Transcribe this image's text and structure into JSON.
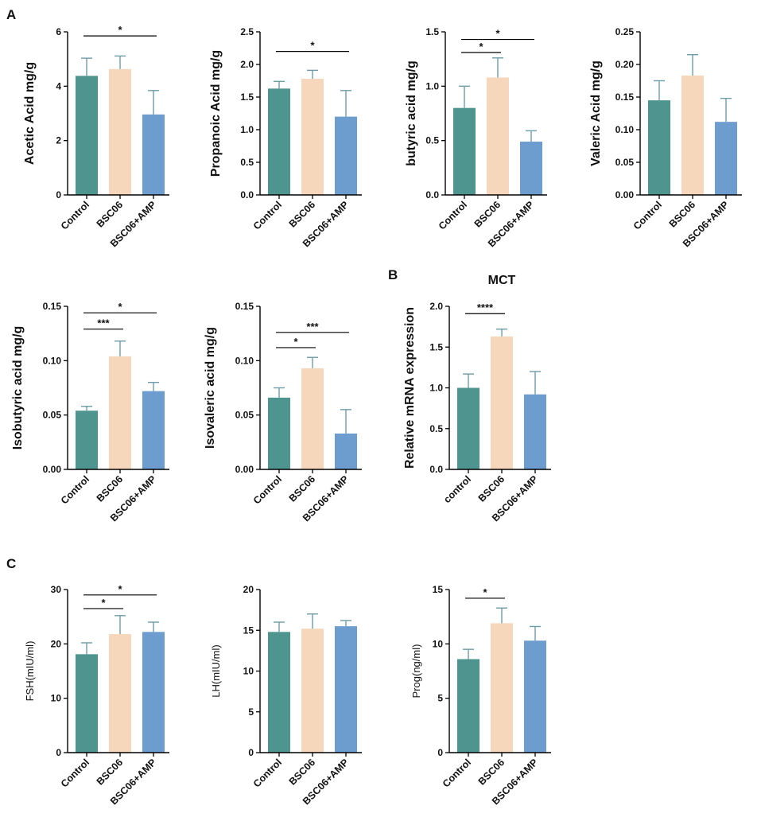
{
  "panel_letters": {
    "a": "A",
    "b": "B",
    "c": "C"
  },
  "colors": {
    "control": "#4e958f",
    "bsc06": "#f6d7bb",
    "amp": "#6d9dcf",
    "axis": "#000000",
    "error": "#6e9ca8"
  },
  "chart_data": [
    {
      "id": "acetic",
      "type": "bar",
      "title": "",
      "ylabel": "Acetic Acid mg/g",
      "categories": [
        "Control",
        "BSC06",
        "BSC06+AMP"
      ],
      "values": [
        4.38,
        4.63,
        2.96
      ],
      "errors": [
        0.65,
        0.48,
        0.88
      ],
      "ylim": [
        0,
        6
      ],
      "yticks": [
        "0",
        "2",
        "4",
        "6"
      ],
      "significance": [
        {
          "from": 0,
          "to": 2,
          "y": 5.85,
          "label": "*"
        }
      ]
    },
    {
      "id": "propanoic",
      "type": "bar",
      "title": "",
      "ylabel": "Propanoic Acid mg/g",
      "categories": [
        "Control",
        "BSC06",
        "BSC06+AMP"
      ],
      "values": [
        1.63,
        1.78,
        1.2
      ],
      "errors": [
        0.11,
        0.13,
        0.4
      ],
      "ylim": [
        0,
        2.5
      ],
      "yticks": [
        "0.0",
        "0.5",
        "1.0",
        "1.5",
        "2.0",
        "2.5"
      ],
      "significance": [
        {
          "from": 0,
          "to": 2,
          "y": 2.2,
          "label": "*"
        }
      ]
    },
    {
      "id": "butyric",
      "type": "bar",
      "title": "",
      "ylabel": "butyric acid mg/g",
      "categories": [
        "Control",
        "BSC06",
        "BSC06+AMP"
      ],
      "values": [
        0.8,
        1.08,
        0.49
      ],
      "errors": [
        0.2,
        0.18,
        0.1
      ],
      "ylim": [
        0,
        1.5
      ],
      "yticks": [
        "0.0",
        "0.5",
        "1.0",
        "1.5"
      ],
      "significance": [
        {
          "from": 0,
          "to": 1,
          "y": 1.31,
          "label": "*"
        },
        {
          "from": 0,
          "to": 2,
          "y": 1.43,
          "label": "*"
        }
      ]
    },
    {
      "id": "valeric",
      "type": "bar",
      "title": "",
      "ylabel": "Valeric Acid mg/g",
      "categories": [
        "Control",
        "BSC06",
        "BSC06+AMP"
      ],
      "values": [
        0.145,
        0.183,
        0.112
      ],
      "errors": [
        0.03,
        0.032,
        0.036
      ],
      "ylim": [
        0,
        0.25
      ],
      "yticks": [
        "0.00",
        "0.05",
        "0.10",
        "0.15",
        "0.20",
        "0.25"
      ],
      "significance": []
    },
    {
      "id": "isobutyric",
      "type": "bar",
      "title": "",
      "ylabel": "Isobutyric acid mg/g",
      "categories": [
        "Control",
        "BSC06",
        "BSC06+AMP"
      ],
      "values": [
        0.054,
        0.104,
        0.072
      ],
      "errors": [
        0.004,
        0.014,
        0.008
      ],
      "ylim": [
        0,
        0.15
      ],
      "yticks": [
        "0.00",
        "0.05",
        "0.10",
        "0.15"
      ],
      "significance": [
        {
          "from": 0,
          "to": 1,
          "y": 0.129,
          "label": "***"
        },
        {
          "from": 0,
          "to": 2,
          "y": 0.144,
          "label": "*"
        }
      ]
    },
    {
      "id": "isovaleric",
      "type": "bar",
      "title": "",
      "ylabel": "Isovaleric acid mg/g",
      "categories": [
        "Control",
        "BSC06",
        "BSC06+AMP"
      ],
      "values": [
        0.066,
        0.093,
        0.033
      ],
      "errors": [
        0.009,
        0.01,
        0.022
      ],
      "ylim": [
        0,
        0.15
      ],
      "yticks": [
        "0.00",
        "0.05",
        "0.10",
        "0.15"
      ],
      "significance": [
        {
          "from": 0,
          "to": 1,
          "y": 0.112,
          "label": "*"
        },
        {
          "from": 0,
          "to": 2,
          "y": 0.126,
          "label": "***"
        }
      ]
    },
    {
      "id": "mct",
      "type": "bar",
      "title": "MCT",
      "ylabel": "Relative mRNA expression",
      "categories": [
        "control",
        "BSC06",
        "BSC06+AMP"
      ],
      "values": [
        1.0,
        1.63,
        0.92
      ],
      "errors": [
        0.17,
        0.09,
        0.28
      ],
      "ylim": [
        0,
        2.0
      ],
      "yticks": [
        "0.0",
        "0.5",
        "1.0",
        "1.5",
        "2.0"
      ],
      "significance": [
        {
          "from": 0,
          "to": 1,
          "y": 1.91,
          "label": "****"
        }
      ]
    },
    {
      "id": "fsh",
      "type": "bar",
      "title": "",
      "ylabel": "FSH(mIU/ml)",
      "categories": [
        "Control",
        "BSC06",
        "BSC06+AMP"
      ],
      "values": [
        18.1,
        21.8,
        22.2
      ],
      "errors": [
        2.1,
        3.4,
        1.8
      ],
      "ylim": [
        0,
        30
      ],
      "yticks": [
        "0",
        "10",
        "20",
        "30"
      ],
      "significance": [
        {
          "from": 0,
          "to": 1,
          "y": 26.5,
          "label": "*"
        },
        {
          "from": 0,
          "to": 2,
          "y": 29.0,
          "label": "*"
        }
      ]
    },
    {
      "id": "lh",
      "type": "bar",
      "title": "",
      "ylabel": "LH(mIU/ml)",
      "categories": [
        "Control",
        "BSC06",
        "BSC06+AMP"
      ],
      "values": [
        14.8,
        15.2,
        15.5
      ],
      "errors": [
        1.2,
        1.8,
        0.7
      ],
      "ylim": [
        0,
        20
      ],
      "yticks": [
        "0",
        "5",
        "10",
        "15",
        "20"
      ],
      "significance": []
    },
    {
      "id": "prog",
      "type": "bar",
      "title": "",
      "ylabel": "Prog(ng/ml)",
      "categories": [
        "Control",
        "BSC06",
        "BSC06+AMP"
      ],
      "values": [
        8.6,
        11.9,
        10.3
      ],
      "errors": [
        0.9,
        1.4,
        1.3
      ],
      "ylim": [
        0,
        15
      ],
      "yticks": [
        "0",
        "5",
        "10",
        "15"
      ],
      "significance": [
        {
          "from": 0,
          "to": 1,
          "y": 14.2,
          "label": "*"
        }
      ]
    }
  ]
}
